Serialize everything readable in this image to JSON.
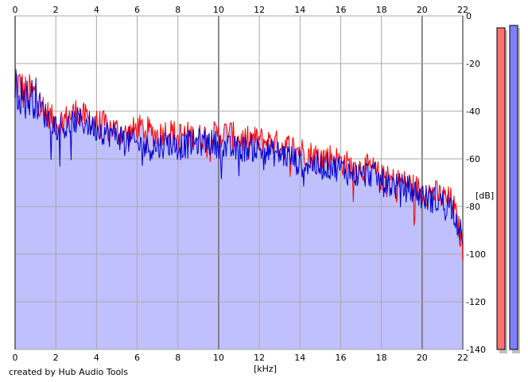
{
  "chart_data": {
    "type": "area",
    "title": "",
    "xlabel": "[kHz]",
    "ylabel": "[dB]",
    "xlim": [
      0,
      22
    ],
    "ylim": [
      -140,
      0
    ],
    "x_ticks": [
      "0",
      "2",
      "4",
      "6",
      "8",
      "10",
      "12",
      "14",
      "16",
      "18",
      "20",
      "22"
    ],
    "y_ticks": [
      "0",
      "-20",
      "-40",
      "-60",
      "-80",
      "-100",
      "-120",
      "-140"
    ],
    "grid": true,
    "x": [
      0,
      0.5,
      1,
      1.5,
      2,
      2.5,
      3,
      3.5,
      4,
      4.5,
      5,
      5.5,
      6,
      6.5,
      7,
      7.5,
      8,
      8.5,
      9,
      9.5,
      10,
      10.5,
      11,
      11.5,
      12,
      12.5,
      13,
      13.5,
      14,
      14.5,
      15,
      15.5,
      16,
      16.5,
      17,
      17.5,
      18,
      18.5,
      19,
      19.5,
      20,
      20.5,
      21,
      21.5,
      22
    ],
    "series": [
      {
        "color": "#ff0000",
        "values": [
          -27,
          -33,
          -33,
          -40,
          -45,
          -43,
          -40,
          -43,
          -45,
          -46,
          -48,
          -50,
          -47,
          -48,
          -50,
          -48,
          -50,
          -50,
          -51,
          -50,
          -50,
          -49,
          -52,
          -52,
          -52,
          -53,
          -54,
          -55,
          -56,
          -58,
          -59,
          -59,
          -61,
          -63,
          -64,
          -64,
          -68,
          -69,
          -70,
          -71,
          -74,
          -74,
          -76,
          -78,
          -97
        ]
      },
      {
        "color": "#0000cc",
        "values": [
          -30,
          -35,
          -34,
          -42,
          -46,
          -47,
          -44,
          -45,
          -47,
          -49,
          -50,
          -52,
          -54,
          -55,
          -55,
          -53,
          -55,
          -54,
          -53,
          -53,
          -54,
          -56,
          -56,
          -55,
          -56,
          -57,
          -58,
          -59,
          -62,
          -62,
          -63,
          -63,
          -64,
          -66,
          -67,
          -66,
          -70,
          -71,
          -72,
          -73,
          -76,
          -77,
          -78,
          -80,
          -94
        ]
      }
    ],
    "fill_color": "#c0c0ff",
    "meters": [
      {
        "color": "#ff7070",
        "level_db": -5
      },
      {
        "color": "#8080ff",
        "level_db": -4
      }
    ]
  },
  "footer": {
    "credit": "created by Hub Audio Tools"
  }
}
